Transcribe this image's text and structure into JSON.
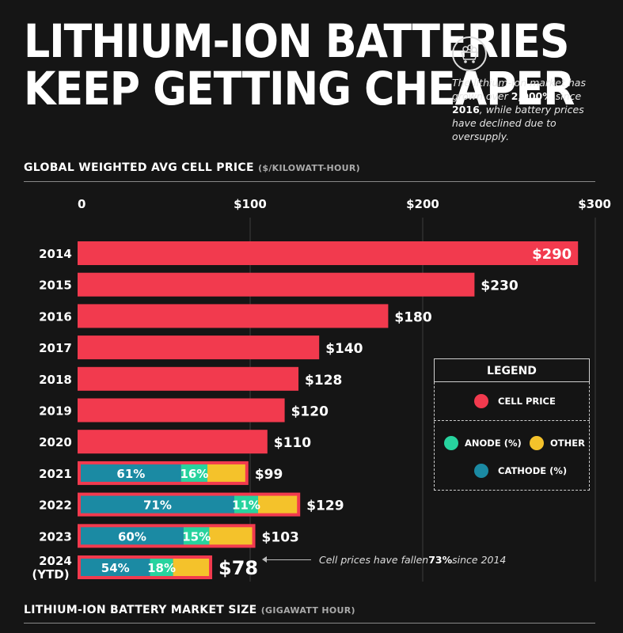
{
  "title": {
    "line1": "LITHIUM-ION BATTERIES",
    "line2": "KEEP GETTING CHEAPER"
  },
  "subtitle": {
    "pre": "The lithium-ion market has grown over ",
    "bold1": "2,000%",
    "mid": " since ",
    "bold2": "2016",
    "post": ", while battery prices have declined due to oversupply."
  },
  "section1": {
    "title": "GLOBAL WEIGHTED AVG CELL PRICE",
    "unit": "($/KILOWATT-HOUR)"
  },
  "section2": {
    "title": "LITHIUM-ION BATTERY MARKET SIZE",
    "unit": "(GIGAWATT HOUR)"
  },
  "chart_data": {
    "type": "bar",
    "orientation": "horizontal",
    "title": "GLOBAL WEIGHTED AVG CELL PRICE",
    "xlabel": "($/KILOWATT-HOUR)",
    "xlim": [
      0,
      300
    ],
    "ticks": [
      0,
      100,
      200,
      300
    ],
    "tick_labels": [
      "0",
      "$100",
      "$200",
      "$300"
    ],
    "categories": [
      "2014",
      "2015",
      "2016",
      "2017",
      "2018",
      "2019",
      "2020",
      "2021",
      "2022",
      "2023",
      "2024 (YTD)"
    ],
    "values": [
      290,
      230,
      180,
      140,
      128,
      120,
      110,
      99,
      129,
      103,
      78
    ],
    "value_labels": [
      "$290",
      "$230",
      "$180",
      "$140",
      "$128",
      "$120",
      "$110",
      "$99",
      "$129",
      "$103",
      "$78"
    ],
    "breakdown": [
      {
        "year": "2021",
        "cathode": 61,
        "anode": 16,
        "other": 23,
        "cathode_label": "61%",
        "anode_label": "16%"
      },
      {
        "year": "2022",
        "cathode": 71,
        "anode": 11,
        "other": 18,
        "cathode_label": "71%",
        "anode_label": "11%"
      },
      {
        "year": "2023",
        "cathode": 60,
        "anode": 15,
        "other": 25,
        "cathode_label": "60%",
        "anode_label": "15%"
      },
      {
        "year": "2024 (YTD)",
        "cathode": 54,
        "anode": 18,
        "other": 28,
        "cathode_label": "54%",
        "anode_label": "18%"
      }
    ],
    "grid": true
  },
  "legend": {
    "title": "LEGEND",
    "cell_price": "CELL PRICE",
    "anode": "ANODE (%)",
    "other": "OTHER",
    "cathode": "CATHODE (%)"
  },
  "annotation": {
    "pre": "Cell prices have fallen ",
    "bold": "73%",
    "post": " since 2014"
  },
  "colors": {
    "price": "#f23a4e",
    "cathode": "#1b8aa3",
    "anode": "#27d39e",
    "other": "#f4c22b",
    "background": "#151515"
  }
}
